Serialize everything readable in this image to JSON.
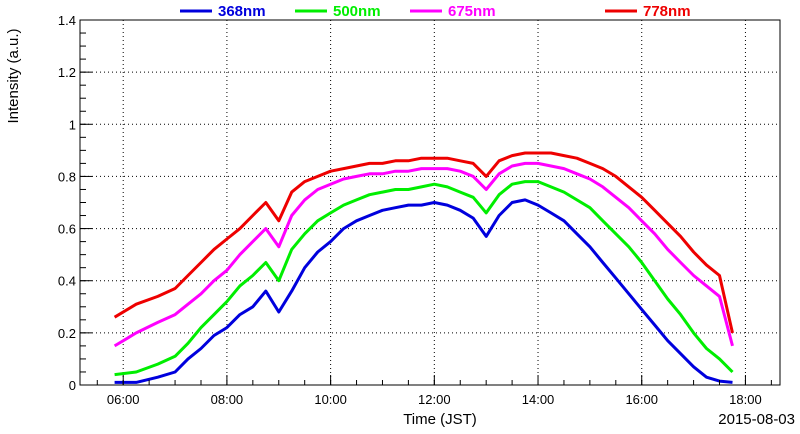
{
  "chart_data": {
    "type": "line",
    "xlabel": "Time (JST)",
    "ylabel": "Intensity (a.u.)",
    "date_label": "2015-08-03",
    "x_ticks": [
      "06:00",
      "08:00",
      "10:00",
      "12:00",
      "14:00",
      "16:00",
      "18:00"
    ],
    "y_ticks": [
      "0",
      "0.2",
      "0.4",
      "0.6",
      "0.8",
      "1",
      "1.2",
      "1.4"
    ],
    "xlim": [
      "05:10",
      "18:40"
    ],
    "ylim": [
      0,
      1.4
    ],
    "grid": true,
    "legend_position": "top",
    "series": [
      {
        "name": "368nm",
        "color": "#0000dd",
        "x": [
          "05:50",
          "06:15",
          "06:40",
          "07:00",
          "07:15",
          "07:30",
          "07:45",
          "08:00",
          "08:15",
          "08:30",
          "08:45",
          "09:00",
          "09:15",
          "09:30",
          "09:45",
          "10:00",
          "10:15",
          "10:30",
          "10:45",
          "11:00",
          "11:15",
          "11:30",
          "11:45",
          "12:00",
          "12:15",
          "12:30",
          "12:45",
          "13:00",
          "13:15",
          "13:30",
          "13:45",
          "14:00",
          "14:15",
          "14:30",
          "14:45",
          "15:00",
          "15:15",
          "15:30",
          "15:45",
          "16:00",
          "16:15",
          "16:30",
          "16:45",
          "17:00",
          "17:15",
          "17:30",
          "17:45"
        ],
        "values": [
          0.01,
          0.01,
          0.03,
          0.05,
          0.1,
          0.14,
          0.19,
          0.22,
          0.27,
          0.3,
          0.36,
          0.28,
          0.36,
          0.45,
          0.51,
          0.55,
          0.6,
          0.63,
          0.65,
          0.67,
          0.68,
          0.69,
          0.69,
          0.7,
          0.69,
          0.67,
          0.64,
          0.57,
          0.65,
          0.7,
          0.71,
          0.69,
          0.66,
          0.63,
          0.58,
          0.53,
          0.47,
          0.41,
          0.35,
          0.29,
          0.23,
          0.17,
          0.12,
          0.07,
          0.03,
          0.015,
          0.01
        ]
      },
      {
        "name": "500nm",
        "color": "#00ee00",
        "x": [
          "05:50",
          "06:15",
          "06:40",
          "07:00",
          "07:15",
          "07:30",
          "07:45",
          "08:00",
          "08:15",
          "08:30",
          "08:45",
          "09:00",
          "09:15",
          "09:30",
          "09:45",
          "10:00",
          "10:15",
          "10:30",
          "10:45",
          "11:00",
          "11:15",
          "11:30",
          "11:45",
          "12:00",
          "12:15",
          "12:30",
          "12:45",
          "13:00",
          "13:15",
          "13:30",
          "13:45",
          "14:00",
          "14:15",
          "14:30",
          "14:45",
          "15:00",
          "15:15",
          "15:30",
          "15:45",
          "16:00",
          "16:15",
          "16:30",
          "16:45",
          "17:00",
          "17:15",
          "17:30",
          "17:45"
        ],
        "values": [
          0.04,
          0.05,
          0.08,
          0.11,
          0.16,
          0.22,
          0.27,
          0.32,
          0.38,
          0.42,
          0.47,
          0.4,
          0.52,
          0.58,
          0.63,
          0.66,
          0.69,
          0.71,
          0.73,
          0.74,
          0.75,
          0.75,
          0.76,
          0.77,
          0.76,
          0.74,
          0.72,
          0.66,
          0.73,
          0.77,
          0.78,
          0.78,
          0.76,
          0.74,
          0.71,
          0.68,
          0.63,
          0.58,
          0.53,
          0.47,
          0.4,
          0.33,
          0.27,
          0.2,
          0.14,
          0.1,
          0.05
        ]
      },
      {
        "name": "675nm",
        "color": "#ff00ff",
        "x": [
          "05:50",
          "06:15",
          "06:40",
          "07:00",
          "07:15",
          "07:30",
          "07:45",
          "08:00",
          "08:15",
          "08:30",
          "08:45",
          "09:00",
          "09:15",
          "09:30",
          "09:45",
          "10:00",
          "10:15",
          "10:30",
          "10:45",
          "11:00",
          "11:15",
          "11:30",
          "11:45",
          "12:00",
          "12:15",
          "12:30",
          "12:45",
          "13:00",
          "13:15",
          "13:30",
          "13:45",
          "14:00",
          "14:15",
          "14:30",
          "14:45",
          "15:00",
          "15:15",
          "15:30",
          "15:45",
          "16:00",
          "16:15",
          "16:30",
          "16:45",
          "17:00",
          "17:15",
          "17:30",
          "17:45"
        ],
        "values": [
          0.15,
          0.2,
          0.24,
          0.27,
          0.31,
          0.35,
          0.4,
          0.44,
          0.5,
          0.55,
          0.6,
          0.53,
          0.65,
          0.71,
          0.75,
          0.77,
          0.79,
          0.8,
          0.81,
          0.81,
          0.82,
          0.82,
          0.83,
          0.83,
          0.83,
          0.82,
          0.8,
          0.75,
          0.81,
          0.84,
          0.85,
          0.85,
          0.84,
          0.83,
          0.81,
          0.79,
          0.76,
          0.72,
          0.68,
          0.63,
          0.58,
          0.52,
          0.47,
          0.42,
          0.38,
          0.34,
          0.15
        ]
      },
      {
        "name": "778nm",
        "color": "#ee0000",
        "x": [
          "05:50",
          "06:15",
          "06:40",
          "07:00",
          "07:15",
          "07:30",
          "07:45",
          "08:00",
          "08:15",
          "08:30",
          "08:45",
          "09:00",
          "09:15",
          "09:30",
          "09:45",
          "10:00",
          "10:15",
          "10:30",
          "10:45",
          "11:00",
          "11:15",
          "11:30",
          "11:45",
          "12:00",
          "12:15",
          "12:30",
          "12:45",
          "13:00",
          "13:15",
          "13:30",
          "13:45",
          "14:00",
          "14:15",
          "14:30",
          "14:45",
          "15:00",
          "15:15",
          "15:30",
          "15:45",
          "16:00",
          "16:15",
          "16:30",
          "16:45",
          "17:00",
          "17:15",
          "17:30",
          "17:45"
        ],
        "values": [
          0.26,
          0.31,
          0.34,
          0.37,
          0.42,
          0.47,
          0.52,
          0.56,
          0.6,
          0.65,
          0.7,
          0.63,
          0.74,
          0.78,
          0.8,
          0.82,
          0.83,
          0.84,
          0.85,
          0.85,
          0.86,
          0.86,
          0.87,
          0.87,
          0.87,
          0.86,
          0.85,
          0.8,
          0.86,
          0.88,
          0.89,
          0.89,
          0.89,
          0.88,
          0.87,
          0.85,
          0.83,
          0.8,
          0.76,
          0.72,
          0.67,
          0.62,
          0.57,
          0.51,
          0.46,
          0.42,
          0.2
        ]
      }
    ]
  }
}
